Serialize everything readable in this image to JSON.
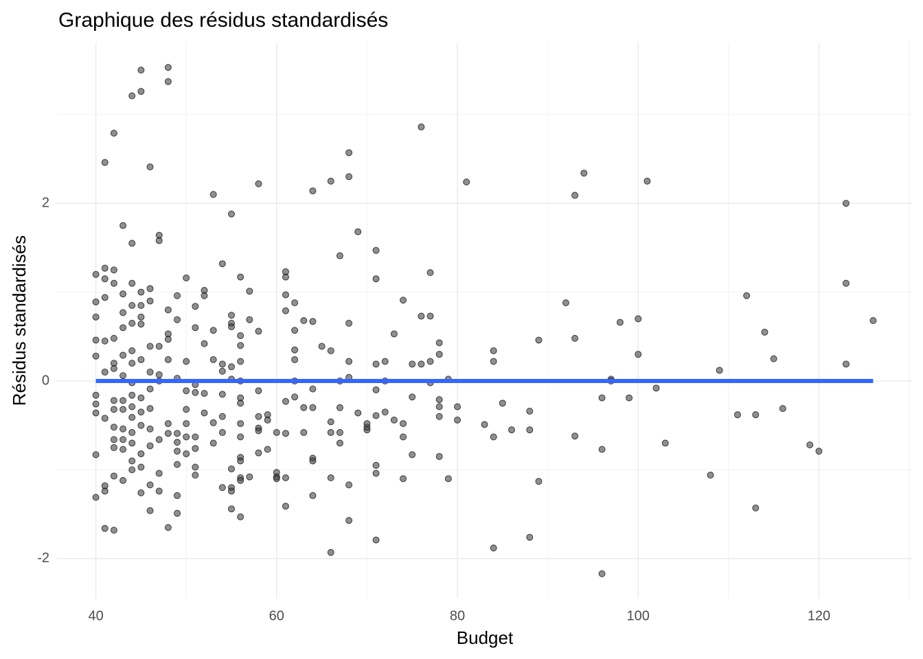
{
  "chart_data": {
    "type": "scatter",
    "title": "Graphique des résidus standardisés",
    "xlabel": "Budget",
    "ylabel": "Résidus standardisés",
    "xlim": [
      35.7,
      130.3
    ],
    "ylim": [
      -2.45,
      3.81
    ],
    "xticks": [
      40,
      60,
      80,
      100,
      120
    ],
    "yticks": [
      -2,
      0,
      2
    ],
    "x_minor_ticks": [
      50,
      70,
      90,
      110,
      130
    ],
    "y_minor_ticks": [
      -1,
      1,
      3
    ],
    "grid": true,
    "color": "#444444",
    "reference_line": {
      "value": 0,
      "color": "#3366FF"
    },
    "x": [
      40,
      40,
      40,
      40,
      40,
      40,
      40,
      40,
      40,
      40,
      41,
      41,
      41,
      41,
      41,
      41,
      41,
      41,
      41,
      41,
      42,
      42,
      42,
      42,
      42,
      42,
      42,
      42,
      42,
      42,
      42,
      42,
      42,
      43,
      43,
      43,
      43,
      43,
      43,
      43,
      43,
      43,
      43,
      43,
      43,
      44,
      44,
      44,
      44,
      44,
      44,
      44,
      44,
      44,
      44,
      44,
      44,
      44,
      44,
      44,
      45,
      45,
      45,
      45,
      45,
      45,
      45,
      45,
      45,
      45,
      45,
      45,
      45,
      46,
      46,
      46,
      46,
      46,
      46,
      46,
      46,
      46,
      46,
      46,
      47,
      47,
      47,
      47,
      47,
      47,
      47,
      47,
      48,
      48,
      48,
      48,
      48,
      48,
      48,
      48,
      48,
      49,
      49,
      49,
      49,
      49,
      49,
      49,
      49,
      49,
      50,
      50,
      50,
      50,
      50,
      50,
      50,
      51,
      51,
      51,
      51,
      51,
      51,
      51,
      51,
      52,
      52,
      52,
      52,
      52,
      53,
      53,
      53,
      53,
      53,
      54,
      54,
      54,
      54,
      54,
      54,
      54,
      55,
      55,
      55,
      55,
      55,
      55,
      55,
      55,
      55,
      55,
      56,
      56,
      56,
      56,
      56,
      56,
      56,
      56,
      56,
      56,
      56,
      56,
      56,
      56,
      57,
      57,
      57,
      58,
      58,
      58,
      58,
      58,
      58,
      58,
      59,
      59,
      59,
      60,
      60,
      60,
      60,
      61,
      61,
      61,
      61,
      61,
      61,
      61,
      61,
      62,
      62,
      62,
      62,
      62,
      62,
      63,
      63,
      63,
      64,
      64,
      64,
      64,
      64,
      64,
      64,
      65,
      66,
      66,
      66,
      66,
      66,
      66,
      67,
      67,
      67,
      67,
      67,
      68,
      68,
      68,
      68,
      68,
      68,
      68,
      69,
      69,
      70,
      70,
      70,
      71,
      71,
      71,
      71,
      71,
      71,
      71,
      71,
      72,
      72,
      72,
      73,
      73,
      74,
      74,
      74,
      74,
      75,
      75,
      75,
      76,
      76,
      76,
      77,
      77,
      77,
      77,
      78,
      78,
      78,
      78,
      78,
      78,
      79,
      79,
      80,
      80,
      81,
      83,
      84,
      84,
      84,
      84,
      85,
      86,
      88,
      88,
      88,
      89,
      89,
      92,
      93,
      93,
      93,
      94,
      96,
      96,
      96,
      97,
      97,
      98,
      99,
      100,
      100,
      101,
      102,
      103,
      108,
      109,
      111,
      112,
      113,
      113,
      114,
      115,
      116,
      119,
      120,
      123,
      123,
      123,
      126
    ],
    "values": [
      1.2,
      0.89,
      0.72,
      0.46,
      0.28,
      -0.16,
      -0.26,
      -0.36,
      -0.83,
      -1.31,
      1.27,
      1.15,
      0.94,
      0.45,
      0.1,
      -0.42,
      -1.18,
      -1.24,
      -1.66,
      2.46,
      2.79,
      1.25,
      1.1,
      0.48,
      0.2,
      0.14,
      -0.22,
      -0.32,
      -0.52,
      -0.66,
      -0.75,
      -1.07,
      -1.68,
      1.75,
      0.98,
      0.77,
      0.6,
      0.29,
      0.06,
      -0.22,
      -0.32,
      -0.54,
      -0.66,
      -0.77,
      -1.12,
      3.21,
      1.55,
      1.1,
      0.85,
      0.65,
      0.34,
      0.2,
      -0.02,
      -0.16,
      -0.29,
      -0.41,
      -0.58,
      -0.7,
      -0.9,
      -1.0,
      3.5,
      3.26,
      1.0,
      0.85,
      0.72,
      0.64,
      0.24,
      -0.19,
      -0.35,
      -0.5,
      -0.82,
      -0.97,
      -1.26,
      2.41,
      1.04,
      0.9,
      0.39,
      0.1,
      -0.09,
      -0.31,
      -0.54,
      -0.73,
      -1.17,
      -1.46,
      1.64,
      1.58,
      0.39,
      0.07,
      0,
      -0.66,
      -1.04,
      -1.24,
      3.53,
      3.37,
      0.8,
      0.53,
      0.47,
      0.24,
      -0.48,
      -0.59,
      -1.65,
      0.96,
      0.69,
      0.03,
      -0.59,
      -0.69,
      -0.79,
      -0.94,
      -1.29,
      -1.49,
      1.16,
      0.22,
      -0.11,
      -0.32,
      -0.48,
      -0.63,
      -0.82,
      0.84,
      0.6,
      -0.04,
      -0.13,
      -0.63,
      -0.76,
      -0.97,
      -1.06,
      1.02,
      0.96,
      0.42,
      -0.14,
      -0.36,
      2.1,
      0.57,
      0.24,
      -0.47,
      -0.7,
      0.19,
      0.11,
      -0.15,
      -0.4,
      -0.58,
      -1.2,
      1.32,
      1.88,
      0.74,
      0.65,
      0.61,
      0.16,
      0.02,
      -0.99,
      -1.2,
      -1.44,
      -1.24,
      1.17,
      0.51,
      0.4,
      0.22,
      0,
      -0.19,
      -0.25,
      -0.48,
      -0.63,
      -0.86,
      -0.9,
      -1.09,
      -1.12,
      -1.53,
      1.01,
      0.69,
      -1.08,
      2.22,
      0.56,
      -0.11,
      -0.4,
      -0.53,
      -0.56,
      -0.81,
      -0.38,
      -0.44,
      -0.77,
      -0.58,
      -1.03,
      -1.08,
      -1.1,
      1.23,
      1.17,
      0.97,
      0.79,
      -0.23,
      -0.59,
      -1.09,
      -1.41,
      0.88,
      0.57,
      0.35,
      0.24,
      0,
      -0.18,
      0.68,
      -0.3,
      -0.58,
      2.14,
      0.67,
      -0.09,
      -0.3,
      -0.87,
      -0.9,
      -1.29,
      0.39,
      2.25,
      0.34,
      -0.46,
      -0.58,
      -1.09,
      -1.93,
      1.41,
      0,
      -0.3,
      -0.58,
      -0.7,
      2.57,
      2.3,
      0.65,
      0.22,
      0.04,
      -1.17,
      -1.57,
      1.68,
      -0.36,
      -0.55,
      -0.52,
      -0.48,
      1.47,
      1.15,
      0.19,
      -0.1,
      -0.39,
      -0.95,
      -1.04,
      -1.79,
      0.22,
      0,
      -0.35,
      0.53,
      -0.44,
      0.91,
      -0.48,
      -0.63,
      -1.1,
      0.19,
      -0.18,
      -0.83,
      2.86,
      0.73,
      0.19,
      1.22,
      0.73,
      0.22,
      -0.02,
      0.43,
      0.3,
      -0.21,
      -0.29,
      -0.4,
      -0.85,
      0.02,
      -1.1,
      -0.29,
      -0.44,
      2.24,
      -0.49,
      0.34,
      0.22,
      -0.63,
      -1.88,
      -0.25,
      -0.55,
      -0.34,
      -0.55,
      -1.76,
      0.46,
      -1.13,
      0.88,
      2.09,
      0.48,
      -0.62,
      2.34,
      -0.19,
      -0.77,
      -2.17,
      0.02,
      0,
      0.66,
      -0.19,
      0.7,
      0.3,
      2.25,
      -0.08,
      -0.7,
      -1.06,
      0.12,
      -0.38,
      0.96,
      -0.38,
      -1.43,
      0.55,
      0.25,
      -0.31,
      -0.72,
      -0.79,
      2.0,
      1.1,
      0.19,
      0.68
    ]
  }
}
